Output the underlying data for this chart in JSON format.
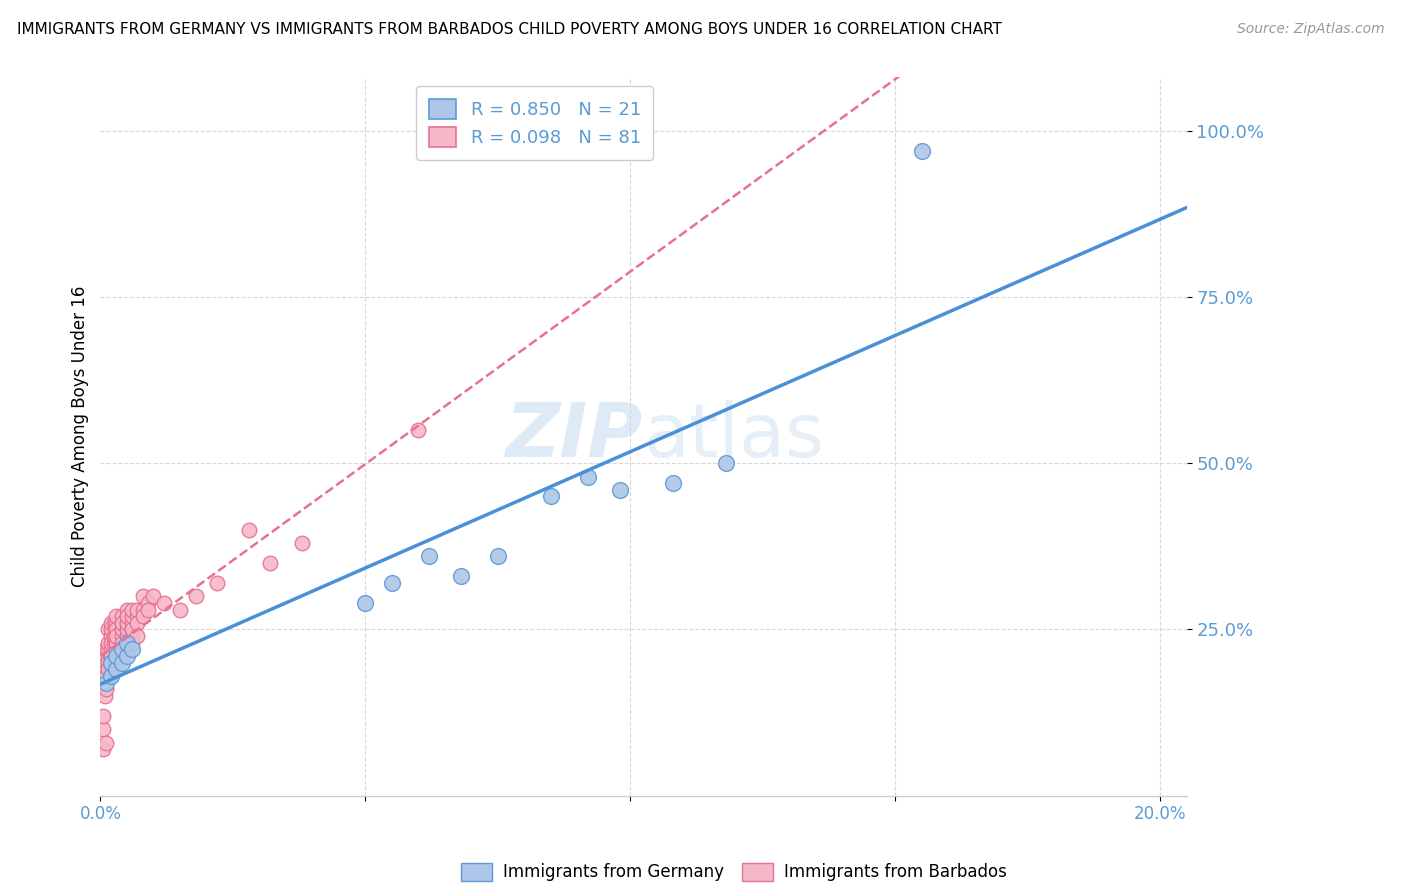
{
  "title": "IMMIGRANTS FROM GERMANY VS IMMIGRANTS FROM BARBADOS CHILD POVERTY AMONG BOYS UNDER 16 CORRELATION CHART",
  "source": "Source: ZipAtlas.com",
  "ylabel": "Child Poverty Among Boys Under 16",
  "legend_r_germany": "R = 0.850",
  "legend_n_germany": "N = 21",
  "legend_r_barbados": "R = 0.098",
  "legend_n_barbados": "N = 81",
  "germany_face_color": "#aec6e8",
  "germany_edge_color": "#5b9bd5",
  "barbados_face_color": "#f5b8c8",
  "barbados_edge_color": "#e87090",
  "germany_line_color": "#4a90d9",
  "barbados_line_color": "#e87090",
  "axis_label_color": "#5b9bd5",
  "watermark_color": "#c8dcf0",
  "germany_scatter_x": [
    0.001,
    0.002,
    0.002,
    0.003,
    0.003,
    0.004,
    0.004,
    0.005,
    0.005,
    0.006,
    0.05,
    0.055,
    0.062,
    0.068,
    0.075,
    0.085,
    0.092,
    0.098,
    0.108,
    0.118,
    0.155
  ],
  "germany_scatter_y": [
    0.17,
    0.18,
    0.2,
    0.19,
    0.21,
    0.22,
    0.2,
    0.21,
    0.23,
    0.22,
    0.29,
    0.32,
    0.36,
    0.33,
    0.36,
    0.45,
    0.48,
    0.46,
    0.47,
    0.5,
    0.97
  ],
  "barbados_scatter_x": [
    0.0005,
    0.0005,
    0.0005,
    0.0008,
    0.0008,
    0.001,
    0.001,
    0.001,
    0.001,
    0.001,
    0.0015,
    0.0015,
    0.0015,
    0.0015,
    0.0015,
    0.002,
    0.002,
    0.002,
    0.002,
    0.002,
    0.002,
    0.002,
    0.002,
    0.002,
    0.0025,
    0.0025,
    0.0025,
    0.003,
    0.003,
    0.003,
    0.003,
    0.003,
    0.003,
    0.003,
    0.003,
    0.003,
    0.003,
    0.004,
    0.004,
    0.004,
    0.004,
    0.004,
    0.004,
    0.004,
    0.004,
    0.005,
    0.005,
    0.005,
    0.005,
    0.005,
    0.005,
    0.005,
    0.005,
    0.005,
    0.005,
    0.005,
    0.006,
    0.006,
    0.006,
    0.006,
    0.006,
    0.006,
    0.006,
    0.007,
    0.007,
    0.007,
    0.007,
    0.008,
    0.008,
    0.008,
    0.009,
    0.009,
    0.01,
    0.012,
    0.015,
    0.018,
    0.022,
    0.028,
    0.032,
    0.038,
    0.06
  ],
  "barbados_scatter_y": [
    0.1,
    0.12,
    0.07,
    0.15,
    0.18,
    0.2,
    0.22,
    0.18,
    0.16,
    0.08,
    0.22,
    0.25,
    0.2,
    0.23,
    0.19,
    0.22,
    0.24,
    0.22,
    0.21,
    0.25,
    0.26,
    0.23,
    0.2,
    0.18,
    0.23,
    0.26,
    0.24,
    0.25,
    0.24,
    0.23,
    0.22,
    0.26,
    0.27,
    0.25,
    0.22,
    0.23,
    0.24,
    0.25,
    0.26,
    0.24,
    0.23,
    0.22,
    0.25,
    0.27,
    0.26,
    0.25,
    0.24,
    0.26,
    0.27,
    0.22,
    0.24,
    0.23,
    0.25,
    0.26,
    0.28,
    0.27,
    0.25,
    0.26,
    0.27,
    0.28,
    0.24,
    0.23,
    0.25,
    0.27,
    0.28,
    0.26,
    0.24,
    0.28,
    0.3,
    0.27,
    0.29,
    0.28,
    0.3,
    0.29,
    0.28,
    0.3,
    0.32,
    0.4,
    0.35,
    0.38,
    0.55
  ],
  "xlim_min": 0.0,
  "xlim_max": 0.205,
  "ylim_min": 0.0,
  "ylim_max": 1.08,
  "xticks": [
    0.0,
    0.05,
    0.1,
    0.15,
    0.2
  ],
  "yticks": [
    0.25,
    0.5,
    0.75,
    1.0
  ],
  "grid_color": "#d8d8d8",
  "spine_color": "#cccccc"
}
